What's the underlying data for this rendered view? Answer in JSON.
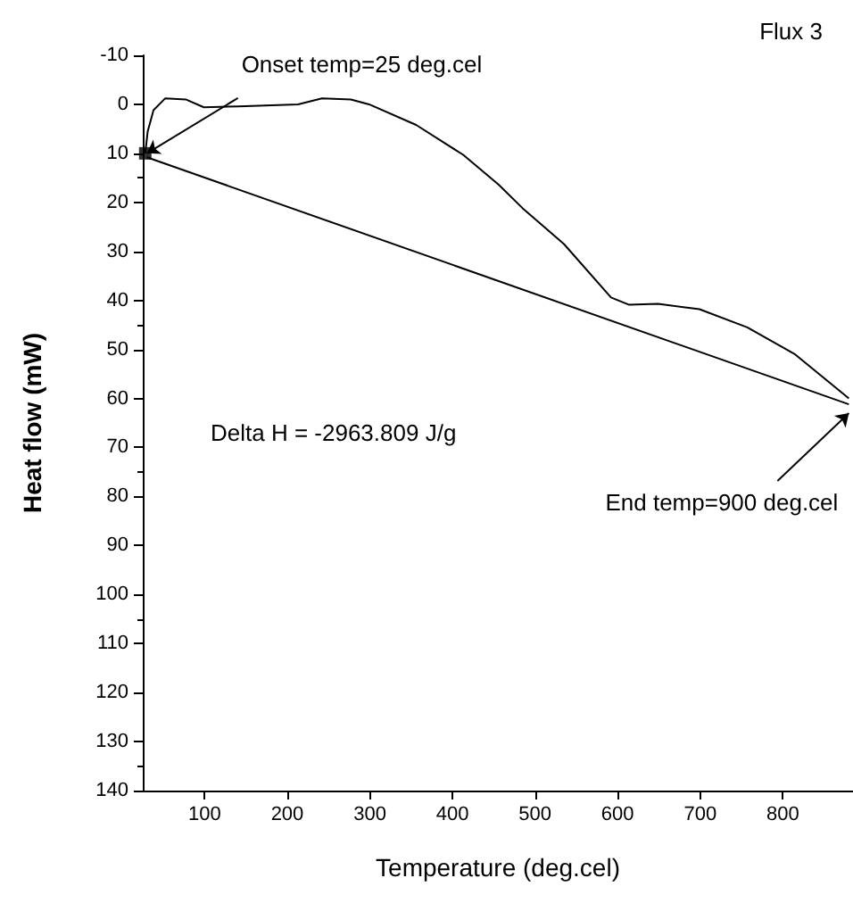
{
  "chart_data": {
    "type": "line",
    "title": "Flux 3",
    "xlabel": "Temperature (deg.cel)",
    "ylabel": "Heat flow (mW)",
    "xlim": [
      25,
      885
    ],
    "xticks": [
      100,
      200,
      300,
      400,
      500,
      600,
      700,
      800
    ],
    "ylim": [
      140,
      -10
    ],
    "yticks": [
      -10,
      0,
      10,
      20,
      30,
      40,
      50,
      60,
      70,
      80,
      90,
      100,
      110,
      120,
      130,
      140
    ],
    "grid": false,
    "marker": "none",
    "line_style": "solid",
    "series": [
      {
        "color": "#000000",
        "x": [
          28,
          31,
          38,
          52,
          77,
          99,
          141,
          213,
          242,
          277,
          299,
          356,
          413,
          456,
          485,
          535,
          592,
          614,
          649,
          699,
          757,
          814,
          880
        ],
        "values": [
          10,
          5.5,
          1.2,
          -1.2,
          -1,
          0.6,
          0.4,
          0,
          -1.2,
          -1,
          0,
          4.2,
          10.3,
          16.4,
          21.2,
          28.5,
          39.4,
          40.9,
          40.7,
          41.8,
          45.5,
          50.9,
          60
        ]
      },
      {
        "color": "#000000",
        "x": [
          30,
          880
        ],
        "values": [
          10.8,
          61.2
        ]
      },
      {
        "type": "scatter",
        "marker": "square",
        "color": "#000000",
        "x": [
          28
        ],
        "values": [
          10
        ]
      }
    ],
    "annotations": [
      {
        "text": "Onset temp=25 deg.cel",
        "x": 30,
        "y": 10
      },
      {
        "text": "End temp=900 deg.cel",
        "x": 880,
        "y": 63
      },
      "Delta H = -2963.809 J/g"
    ]
  }
}
